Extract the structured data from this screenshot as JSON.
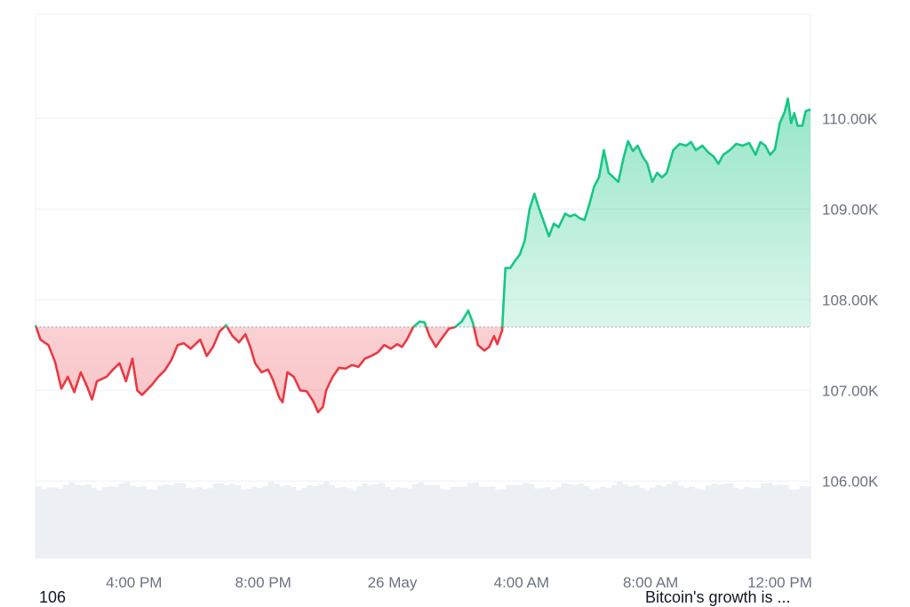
{
  "chart_data": {
    "type": "area",
    "baseline": 107700,
    "ylim": [
      105150,
      111150
    ],
    "y_ticks": [
      {
        "value": 110000,
        "label": "110.00K"
      },
      {
        "value": 109000,
        "label": "109.00K"
      },
      {
        "value": 108000,
        "label": "108.00K"
      },
      {
        "value": 107000,
        "label": "107.00K"
      },
      {
        "value": 106000,
        "label": "106.00K"
      }
    ],
    "x_ticks": [
      {
        "hour": 3.05,
        "label": "4:00 PM"
      },
      {
        "hour": 7.05,
        "label": "8:00 PM"
      },
      {
        "hour": 11.05,
        "label": "26 May"
      },
      {
        "hour": 15.05,
        "label": "4:00 AM"
      },
      {
        "hour": 19.05,
        "label": "8:00 AM"
      },
      {
        "hour": 23.05,
        "label": "12:00 PM"
      }
    ],
    "x_range_hours": [
      0,
      24
    ],
    "colors": {
      "up": "#16c784",
      "down": "#ea3943",
      "grid": "#eef0f3",
      "volume": "#eceff3"
    },
    "series": [
      {
        "points": [
          [
            0.0,
            107720
          ],
          [
            0.15,
            107560
          ],
          [
            0.4,
            107500
          ],
          [
            0.6,
            107320
          ],
          [
            0.8,
            107020
          ],
          [
            1.0,
            107150
          ],
          [
            1.2,
            106980
          ],
          [
            1.4,
            107200
          ],
          [
            1.6,
            107040
          ],
          [
            1.75,
            106900
          ],
          [
            1.9,
            107100
          ],
          [
            2.2,
            107150
          ],
          [
            2.4,
            107230
          ],
          [
            2.6,
            107300
          ],
          [
            2.8,
            107100
          ],
          [
            3.0,
            107350
          ],
          [
            3.15,
            107000
          ],
          [
            3.3,
            106950
          ],
          [
            3.6,
            107060
          ],
          [
            3.8,
            107150
          ],
          [
            4.0,
            107220
          ],
          [
            4.2,
            107330
          ],
          [
            4.4,
            107500
          ],
          [
            4.6,
            107520
          ],
          [
            4.8,
            107460
          ],
          [
            5.1,
            107560
          ],
          [
            5.3,
            107380
          ],
          [
            5.5,
            107480
          ],
          [
            5.7,
            107650
          ],
          [
            5.9,
            107720
          ],
          [
            6.1,
            107600
          ],
          [
            6.3,
            107530
          ],
          [
            6.5,
            107620
          ],
          [
            6.65,
            107480
          ],
          [
            6.8,
            107300
          ],
          [
            7.0,
            107200
          ],
          [
            7.2,
            107230
          ],
          [
            7.35,
            107120
          ],
          [
            7.55,
            106920
          ],
          [
            7.65,
            106870
          ],
          [
            7.8,
            107200
          ],
          [
            8.0,
            107150
          ],
          [
            8.2,
            107000
          ],
          [
            8.4,
            106990
          ],
          [
            8.6,
            106880
          ],
          [
            8.75,
            106760
          ],
          [
            8.9,
            106820
          ],
          [
            9.0,
            107000
          ],
          [
            9.2,
            107150
          ],
          [
            9.4,
            107250
          ],
          [
            9.6,
            107240
          ],
          [
            9.8,
            107280
          ],
          [
            10.0,
            107260
          ],
          [
            10.2,
            107350
          ],
          [
            10.4,
            107380
          ],
          [
            10.6,
            107420
          ],
          [
            10.8,
            107500
          ],
          [
            11.0,
            107460
          ],
          [
            11.2,
            107510
          ],
          [
            11.35,
            107480
          ],
          [
            11.5,
            107560
          ],
          [
            11.7,
            107700
          ],
          [
            11.9,
            107760
          ],
          [
            12.05,
            107750
          ],
          [
            12.2,
            107600
          ],
          [
            12.4,
            107480
          ],
          [
            12.55,
            107560
          ],
          [
            12.8,
            107680
          ],
          [
            13.0,
            107700
          ],
          [
            13.2,
            107760
          ],
          [
            13.4,
            107880
          ],
          [
            13.55,
            107740
          ],
          [
            13.7,
            107500
          ],
          [
            13.9,
            107440
          ],
          [
            14.05,
            107480
          ],
          [
            14.2,
            107600
          ],
          [
            14.3,
            107510
          ],
          [
            14.45,
            107660
          ],
          [
            14.55,
            108350
          ],
          [
            14.7,
            108350
          ],
          [
            14.85,
            108430
          ],
          [
            15.0,
            108500
          ],
          [
            15.15,
            108650
          ],
          [
            15.3,
            109000
          ],
          [
            15.45,
            109170
          ],
          [
            15.6,
            109000
          ],
          [
            15.75,
            108850
          ],
          [
            15.9,
            108700
          ],
          [
            16.05,
            108840
          ],
          [
            16.2,
            108800
          ],
          [
            16.4,
            108950
          ],
          [
            16.55,
            108920
          ],
          [
            16.7,
            108940
          ],
          [
            16.85,
            108900
          ],
          [
            17.0,
            108880
          ],
          [
            17.15,
            109050
          ],
          [
            17.3,
            109250
          ],
          [
            17.45,
            109350
          ],
          [
            17.6,
            109650
          ],
          [
            17.75,
            109400
          ],
          [
            17.9,
            109350
          ],
          [
            18.05,
            109300
          ],
          [
            18.2,
            109550
          ],
          [
            18.35,
            109750
          ],
          [
            18.5,
            109640
          ],
          [
            18.65,
            109700
          ],
          [
            18.8,
            109580
          ],
          [
            18.95,
            109500
          ],
          [
            19.1,
            109300
          ],
          [
            19.25,
            109400
          ],
          [
            19.4,
            109350
          ],
          [
            19.55,
            109400
          ],
          [
            19.75,
            109650
          ],
          [
            19.95,
            109720
          ],
          [
            20.15,
            109700
          ],
          [
            20.3,
            109740
          ],
          [
            20.45,
            109650
          ],
          [
            20.65,
            109700
          ],
          [
            20.85,
            109620
          ],
          [
            21.0,
            109580
          ],
          [
            21.15,
            109500
          ],
          [
            21.3,
            109600
          ],
          [
            21.5,
            109650
          ],
          [
            21.7,
            109720
          ],
          [
            21.9,
            109700
          ],
          [
            22.1,
            109730
          ],
          [
            22.3,
            109600
          ],
          [
            22.45,
            109740
          ],
          [
            22.6,
            109700
          ],
          [
            22.75,
            109600
          ],
          [
            22.9,
            109660
          ],
          [
            23.05,
            109950
          ],
          [
            23.2,
            110070
          ],
          [
            23.3,
            110220
          ],
          [
            23.4,
            109950
          ],
          [
            23.5,
            110060
          ],
          [
            23.6,
            109920
          ],
          [
            23.75,
            109920
          ],
          [
            23.85,
            110080
          ],
          [
            24.0,
            110100
          ]
        ]
      }
    ]
  },
  "footer": {
    "left_text": "106",
    "right_text": "Bitcoin's growth is ..."
  }
}
